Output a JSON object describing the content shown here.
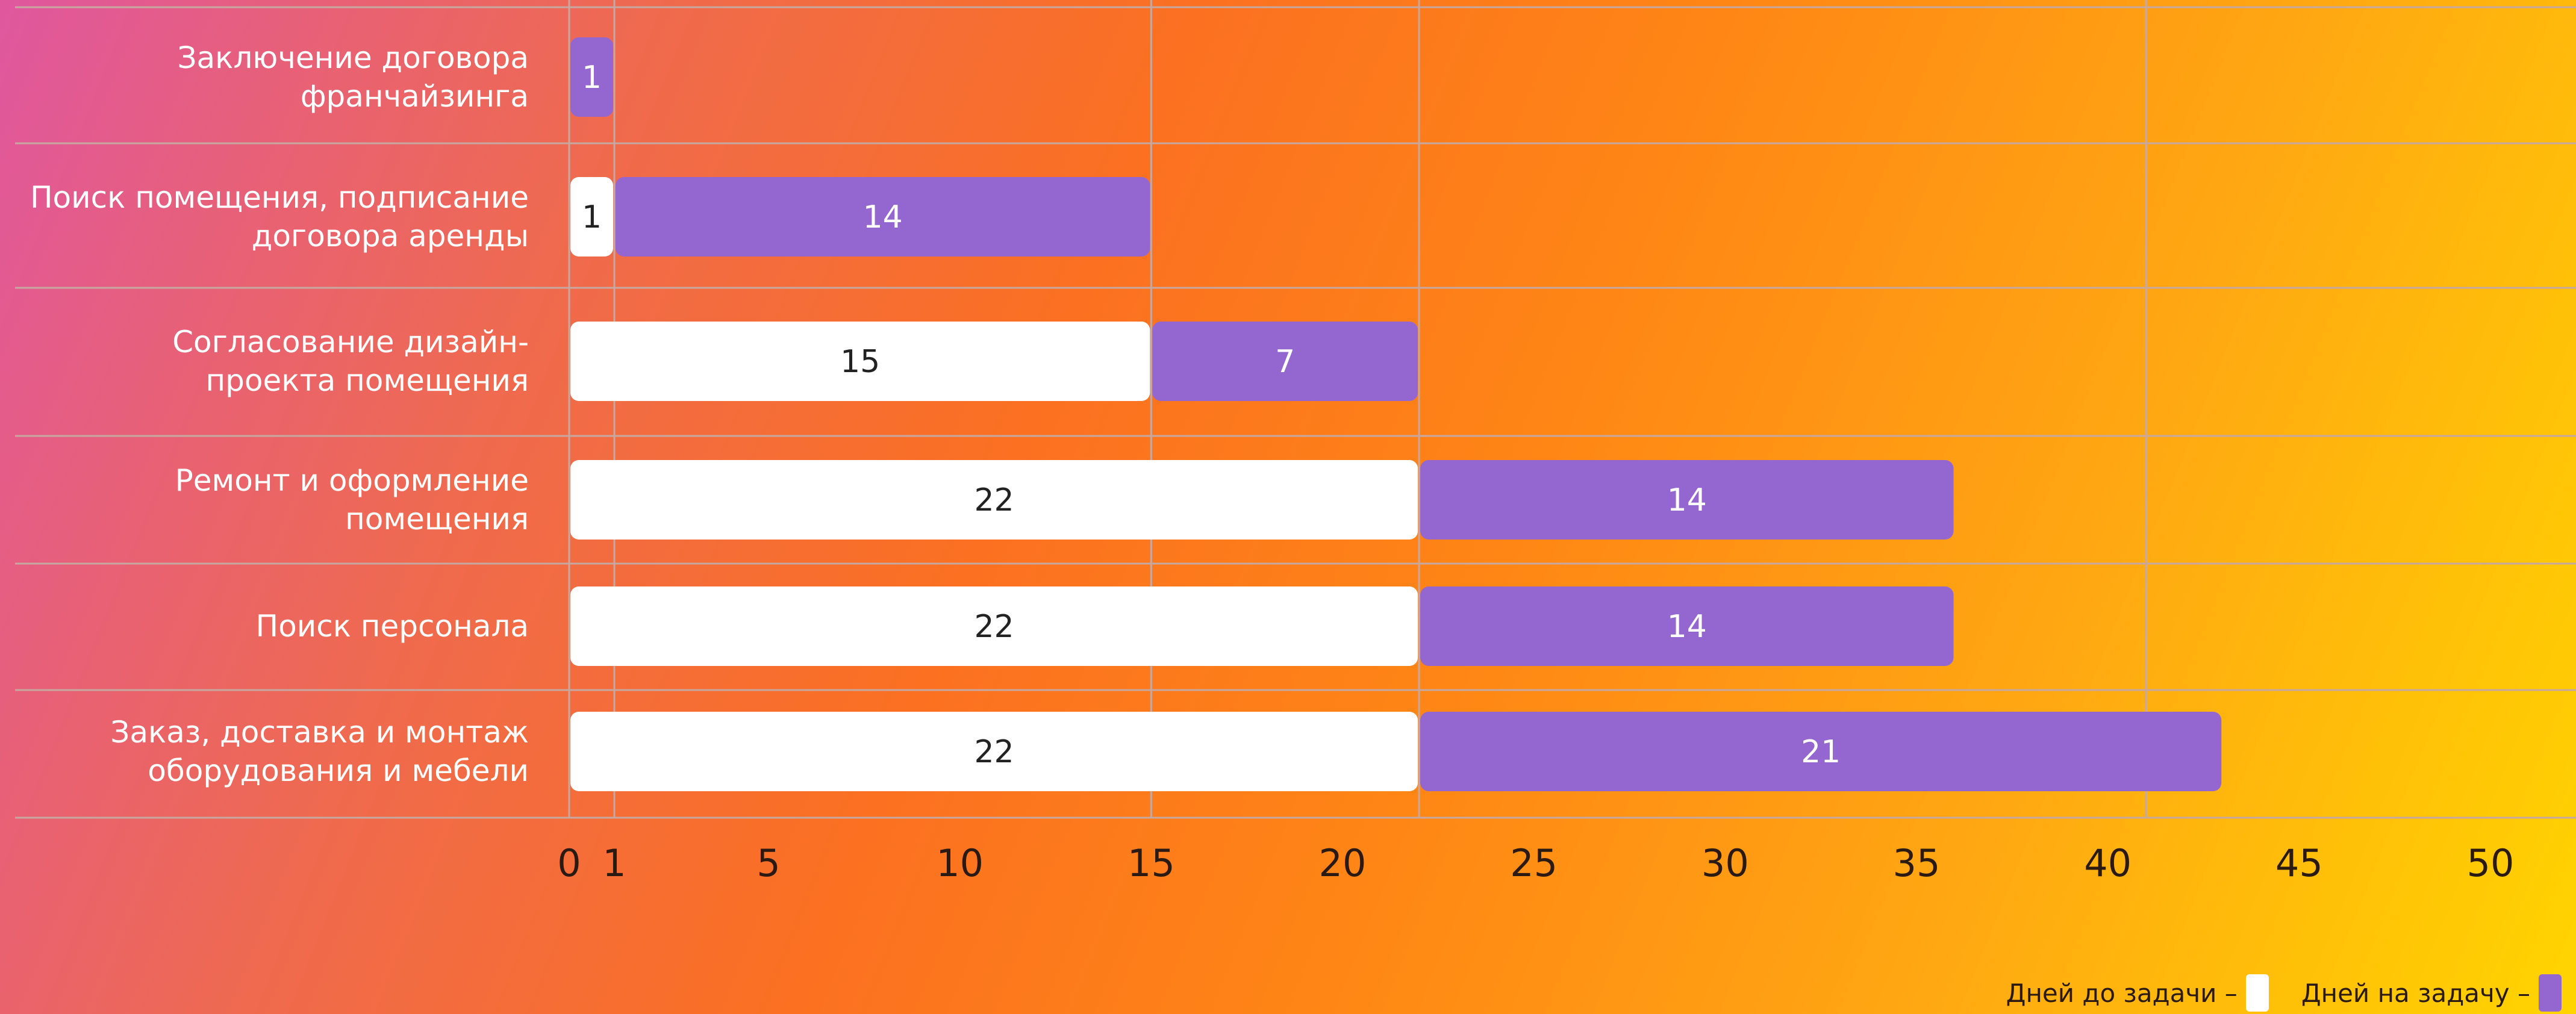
{
  "chart_data": {
    "type": "bar",
    "orientation": "horizontal",
    "stacked": true,
    "categories": [
      "Заключение договора франчайзинга",
      "Поиск помещения, подписание договора аренды",
      "Согласование дизайн-проекта помещения",
      "Ремонт и оформление помещения",
      "Поиск персонала",
      "Заказ, доставка и монтаж оборудования и мебели"
    ],
    "category_display": [
      "Заключение договора\nфранчайзинга",
      "Поиск помещения, подписание\nдоговора аренды",
      "Согласование дизайн-\nпроекта помещения",
      "Ремонт и оформление\nпомещения",
      "Поиск персонала",
      "Заказ, доставка и монтаж\nоборудования и мебели"
    ],
    "series": [
      {
        "name": "Дней до задачи",
        "values": [
          0,
          1,
          15,
          22,
          22,
          22
        ],
        "color": "#ffffff",
        "label_color": "#222222"
      },
      {
        "name": "Дней на задачу",
        "values": [
          1,
          14,
          7,
          14,
          14,
          21
        ],
        "color": "#9467d0",
        "label_color": "#ffffff"
      }
    ],
    "x_ticks": [
      0,
      1,
      5,
      10,
      15,
      20,
      25,
      30,
      35,
      40,
      45,
      50
    ],
    "xlim": [
      0,
      50
    ],
    "grid": true,
    "gridlines_x": [
      0,
      1,
      15,
      22,
      41
    ],
    "legend_position": "bottom-right",
    "legend": [
      {
        "label": "Дней до задачи –",
        "color": "#ffffff"
      },
      {
        "label": "Дней на задачу –",
        "color": "#9467d0"
      }
    ]
  }
}
